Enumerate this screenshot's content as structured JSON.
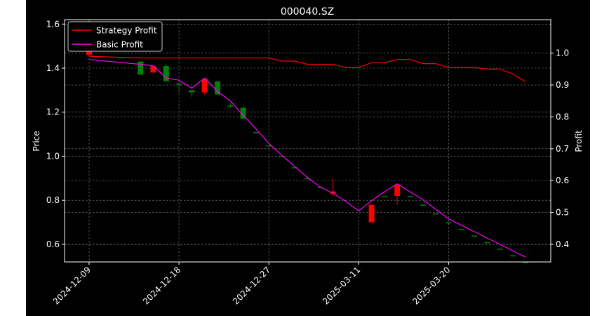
{
  "chart_data": {
    "type": "candlestick",
    "title": "000040.SZ",
    "ylabel_left": "Price",
    "ylabel_right": "Profit",
    "ylim_left": [
      0.52,
      1.62
    ],
    "ylim_right": [
      0.345,
      1.105
    ],
    "yticks_left": [
      "0.6",
      "0.8",
      "1.0",
      "1.2",
      "1.4",
      "1.6"
    ],
    "yticks_right": [
      "0.4",
      "0.5",
      "0.6",
      "0.7",
      "0.8",
      "0.9",
      "1.0"
    ],
    "x_tick_labels": [
      {
        "index": 0,
        "label": "2024-12-09"
      },
      {
        "index": 7,
        "label": "2024-12-18"
      },
      {
        "index": 14,
        "label": "2024-12-27"
      },
      {
        "index": 21,
        "label": "2025-03-11"
      },
      {
        "index": 28,
        "label": "2025-03-20"
      }
    ],
    "grid": true,
    "legend_position": "upper-left",
    "colors": {
      "background": "#000000",
      "up": "#008000",
      "down": "#ff0000",
      "strategy": "#ff0000",
      "basic": "#ff00ff",
      "text": "#ffffff"
    },
    "candles": [
      {
        "i": 0,
        "open": 1.48,
        "close": 1.46,
        "high": 1.48,
        "low": 1.46
      },
      {
        "i": 4,
        "open": 1.37,
        "close": 1.43,
        "high": 1.43,
        "low": 1.37
      },
      {
        "i": 5,
        "open": 1.41,
        "close": 1.38,
        "high": 1.41,
        "low": 1.38
      },
      {
        "i": 6,
        "open": 1.34,
        "close": 1.41,
        "high": 1.42,
        "low": 1.34
      },
      {
        "i": 7,
        "open": 1.33,
        "close": 1.33,
        "high": 1.34,
        "low": 1.29
      },
      {
        "i": 8,
        "open": 1.29,
        "close": 1.3,
        "high": 1.3,
        "low": 1.27
      },
      {
        "i": 9,
        "open": 1.35,
        "close": 1.29,
        "high": 1.35,
        "low": 1.28
      },
      {
        "i": 10,
        "open": 1.28,
        "close": 1.34,
        "high": 1.34,
        "low": 1.28
      },
      {
        "i": 11,
        "open": 1.23,
        "close": 1.23,
        "high": 1.24,
        "low": 1.22
      },
      {
        "i": 12,
        "open": 1.17,
        "close": 1.22,
        "high": 1.23,
        "low": 1.17
      },
      {
        "i": 13,
        "open": 1.11,
        "close": 1.11,
        "high": 1.11,
        "low": 1.11
      },
      {
        "i": 14,
        "open": 1.05,
        "close": 1.05,
        "high": 1.05,
        "low": 1.05
      },
      {
        "i": 15,
        "open": 1.0,
        "close": 1.0,
        "high": 1.0,
        "low": 1.0
      },
      {
        "i": 16,
        "open": 0.95,
        "close": 0.95,
        "high": 0.95,
        "low": 0.95
      },
      {
        "i": 17,
        "open": 0.9,
        "close": 0.9,
        "high": 0.9,
        "low": 0.9
      },
      {
        "i": 18,
        "open": 0.86,
        "close": 0.86,
        "high": 0.86,
        "low": 0.86
      },
      {
        "i": 19,
        "open": 0.84,
        "close": 0.83,
        "high": 0.9,
        "low": 0.82
      },
      {
        "i": 22,
        "open": 0.78,
        "close": 0.7,
        "high": 0.78,
        "low": 0.7
      },
      {
        "i": 23,
        "open": 0.82,
        "close": 0.82,
        "high": 0.82,
        "low": 0.82
      },
      {
        "i": 24,
        "open": 0.87,
        "close": 0.82,
        "high": 0.87,
        "low": 0.78
      },
      {
        "i": 25,
        "open": 0.82,
        "close": 0.82,
        "high": 0.82,
        "low": 0.82
      },
      {
        "i": 26,
        "open": 0.78,
        "close": 0.78,
        "high": 0.78,
        "low": 0.78
      },
      {
        "i": 27,
        "open": 0.74,
        "close": 0.74,
        "high": 0.74,
        "low": 0.74
      },
      {
        "i": 28,
        "open": 0.7,
        "close": 0.7,
        "high": 0.7,
        "low": 0.7
      },
      {
        "i": 29,
        "open": 0.67,
        "close": 0.67,
        "high": 0.67,
        "low": 0.67
      },
      {
        "i": 30,
        "open": 0.64,
        "close": 0.64,
        "high": 0.64,
        "low": 0.64
      },
      {
        "i": 31,
        "open": 0.61,
        "close": 0.61,
        "high": 0.61,
        "low": 0.61
      },
      {
        "i": 32,
        "open": 0.58,
        "close": 0.58,
        "high": 0.58,
        "low": 0.58
      },
      {
        "i": 33,
        "open": 0.55,
        "close": 0.55,
        "high": 0.55,
        "low": 0.55
      },
      {
        "i": 34,
        "open": 0.52,
        "close": 0.52,
        "high": 0.52,
        "low": 0.52
      }
    ],
    "series": [
      {
        "name": "Strategy Profit",
        "axis": "right",
        "color": "#ff0000",
        "x": [
          0,
          4,
          5,
          6,
          7,
          8,
          9,
          10,
          11,
          12,
          13,
          14,
          15,
          16,
          17,
          18,
          19,
          20,
          21,
          22,
          23,
          24,
          25,
          26,
          27,
          28,
          29,
          30,
          31,
          32,
          33,
          34
        ],
        "values": [
          0.99,
          0.985,
          0.985,
          0.985,
          0.985,
          0.985,
          0.985,
          0.985,
          0.985,
          0.985,
          0.985,
          0.985,
          0.975,
          0.975,
          0.965,
          0.965,
          0.965,
          0.955,
          0.955,
          0.97,
          0.97,
          0.98,
          0.98,
          0.967,
          0.967,
          0.955,
          0.955,
          0.955,
          0.95,
          0.95,
          0.935,
          0.91
        ]
      },
      {
        "name": "Basic Profit",
        "axis": "right",
        "color": "#ff00ff",
        "x": [
          0,
          4,
          5,
          6,
          7,
          8,
          9,
          10,
          11,
          12,
          13,
          14,
          15,
          16,
          17,
          18,
          19,
          20,
          21,
          22,
          23,
          24,
          25,
          26,
          27,
          28,
          29,
          30,
          31,
          32,
          33,
          34
        ],
        "values": [
          0.98,
          0.965,
          0.96,
          0.922,
          0.915,
          0.89,
          0.922,
          0.88,
          0.85,
          0.805,
          0.762,
          0.717,
          0.68,
          0.645,
          0.61,
          0.58,
          0.56,
          0.535,
          0.505,
          0.537,
          0.565,
          0.59,
          0.565,
          0.54,
          0.51,
          0.48,
          0.46,
          0.44,
          0.42,
          0.4,
          0.38,
          0.36
        ]
      }
    ]
  }
}
